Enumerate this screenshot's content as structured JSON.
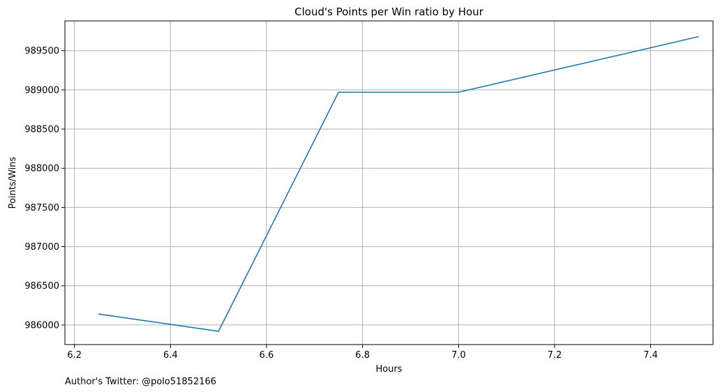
{
  "chart_data": {
    "type": "line",
    "title": "Cloud's Points per Win ratio by Hour",
    "xlabel": "Hours",
    "ylabel": "Points/Wins",
    "xlim": [
      6.18,
      7.53
    ],
    "ylim": [
      985750,
      989880
    ],
    "xticks": [
      6.2,
      6.4,
      6.6,
      6.8,
      7.0,
      7.2,
      7.4
    ],
    "xtick_labels": [
      "6.2",
      "6.4",
      "6.6",
      "6.8",
      "7.0",
      "7.2",
      "7.4"
    ],
    "yticks": [
      986000,
      986500,
      987000,
      987500,
      988000,
      988500,
      989000,
      989500
    ],
    "ytick_labels": [
      "986000",
      "986500",
      "987000",
      "987500",
      "988000",
      "988500",
      "989000",
      "989500"
    ],
    "grid": true,
    "series": [
      {
        "color": "#1f77b4",
        "x": [
          6.25,
          6.5,
          6.75,
          7.0,
          7.5
        ],
        "y": [
          986140,
          985920,
          988970,
          988970,
          989680
        ]
      }
    ],
    "annotation": "Author's Twitter: @polo51852166"
  }
}
